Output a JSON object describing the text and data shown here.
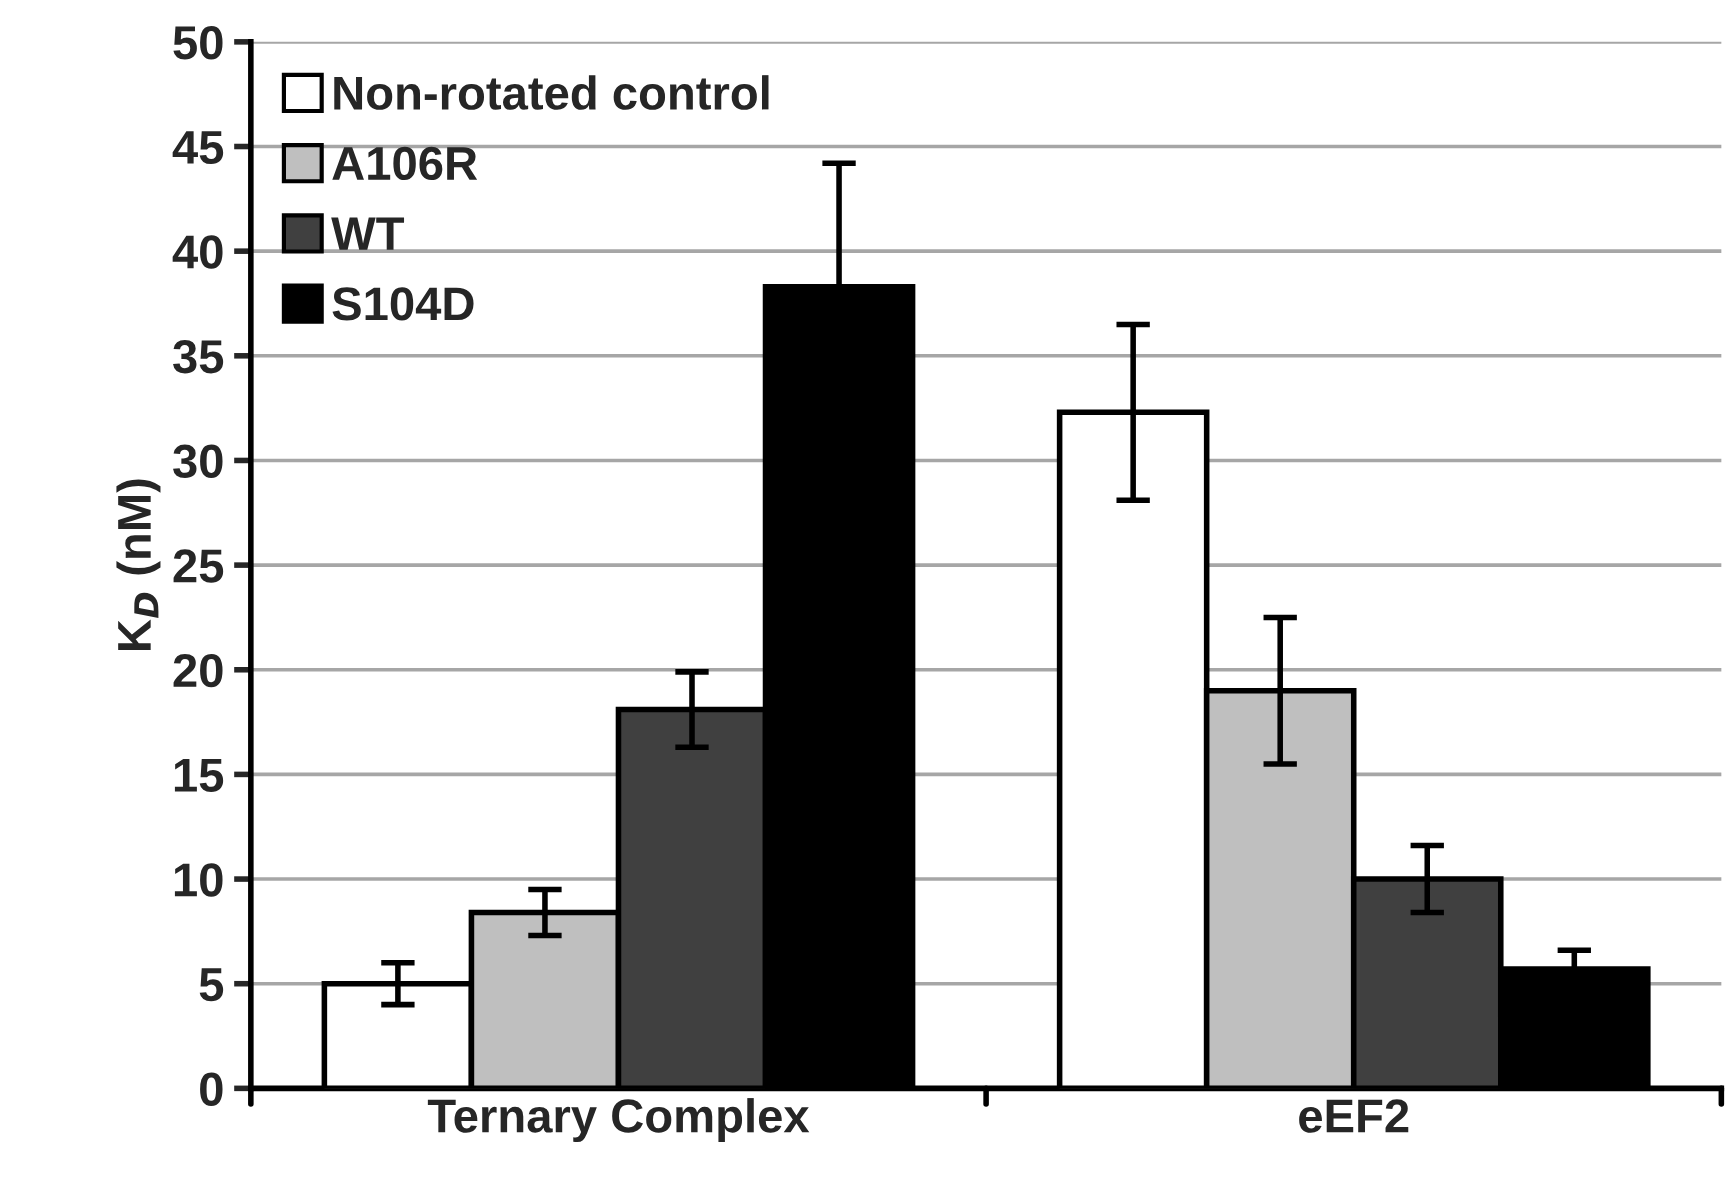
{
  "chart_data": {
    "type": "bar",
    "ylabel": "K$_{D}$ (nM)",
    "categories": [
      "Ternary Complex",
      "eEF2"
    ],
    "series": [
      {
        "name": "Non-rotated control",
        "color": "#ffffff",
        "values": [
          5.0,
          32.3
        ],
        "errors": [
          1.0,
          4.2
        ]
      },
      {
        "name": "A106R",
        "color": "#bfbfbf",
        "values": [
          8.4,
          19.0
        ],
        "errors": [
          1.1,
          3.5
        ]
      },
      {
        "name": "WT",
        "color": "#404040",
        "values": [
          18.1,
          10.0
        ],
        "errors": [
          1.8,
          1.6
        ]
      },
      {
        "name": "S104D",
        "color": "#000000",
        "values": [
          38.3,
          5.7
        ],
        "errors": [
          5.9,
          0.9
        ]
      }
    ],
    "ylim": [
      0,
      50
    ],
    "yticks": [
      0,
      5,
      10,
      15,
      20,
      25,
      30,
      35,
      40,
      45,
      50
    ],
    "grid": "y",
    "legend": "top left"
  }
}
